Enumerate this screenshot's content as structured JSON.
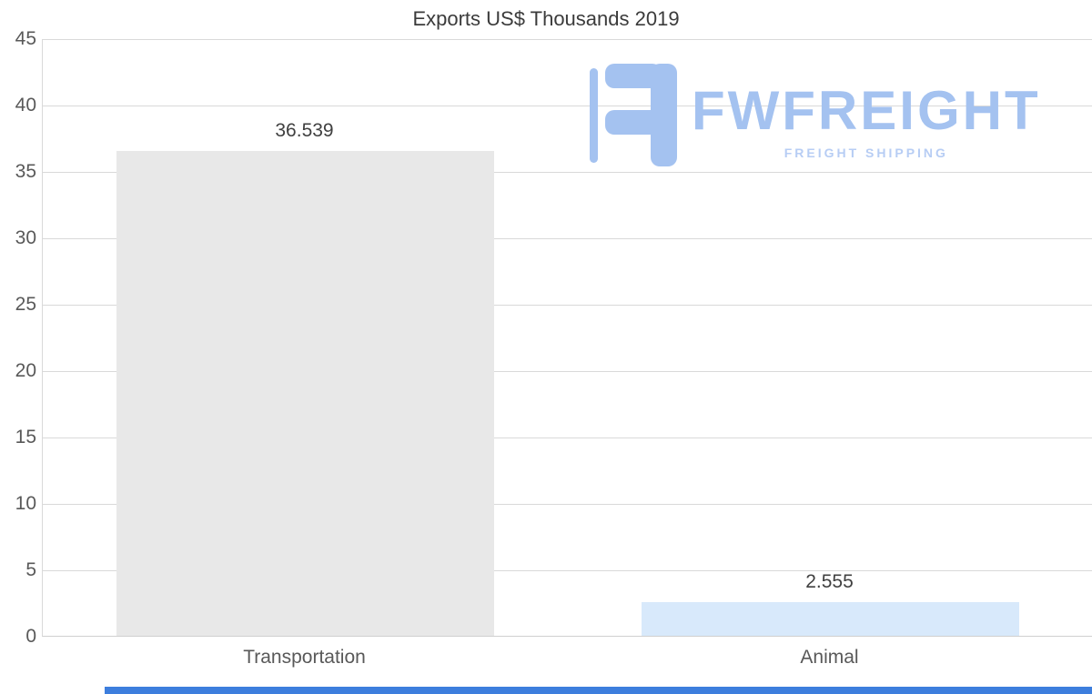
{
  "chart_data": {
    "type": "bar",
    "title": "Exports US$ Thousands 2019",
    "categories": [
      "Transportation",
      "Animal"
    ],
    "values": [
      36.539,
      2.555
    ],
    "value_labels": [
      "36.539",
      "2.555"
    ],
    "xlabel": "",
    "ylabel": "",
    "ylim": [
      0,
      45
    ],
    "yticks": [
      0,
      5,
      10,
      15,
      20,
      25,
      30,
      35,
      40,
      45
    ],
    "grid": true,
    "legend": "none",
    "bar_colors": [
      "#e8e8e8",
      "#d8e9fb"
    ]
  },
  "logo": {
    "name": "FWFREIGHT",
    "tagline": "FREIGHT SHIPPING",
    "color": "#a4c2f0"
  },
  "colors": {
    "grid": "#d9d9d9",
    "axis_text": "#595959",
    "value_text": "#404040",
    "title_text": "#3b3b3b",
    "bottom_bar": "#3d7edd"
  }
}
